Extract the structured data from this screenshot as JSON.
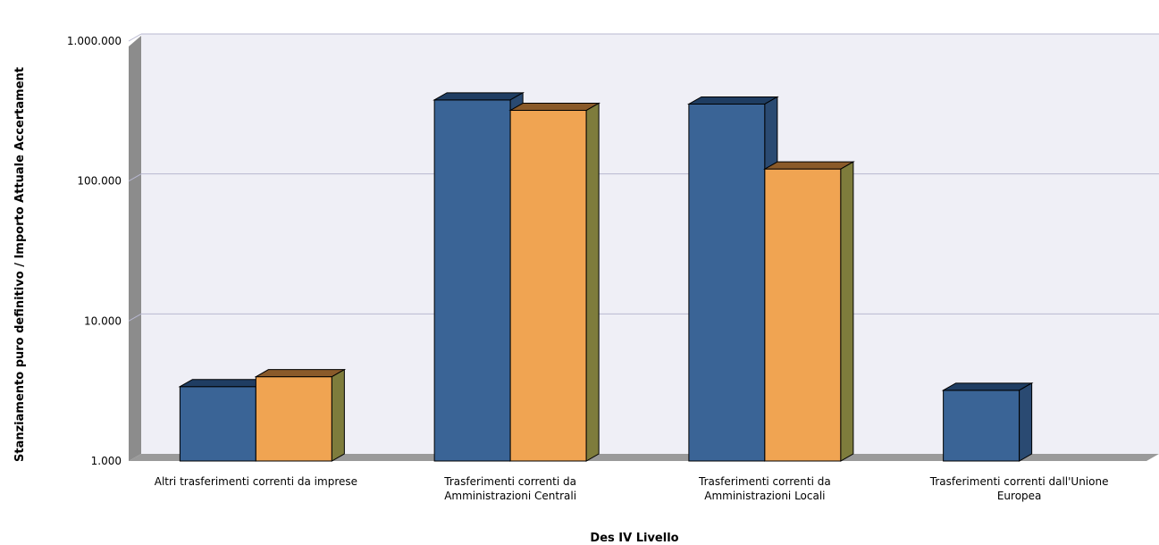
{
  "chart_data": {
    "type": "bar",
    "title": "",
    "xlabel": "Des IV Livello",
    "ylabel": "Stanziamento puro definitivo / Importo Attuale Accertament",
    "yscale": "log",
    "ylim": [
      1000,
      1000000
    ],
    "yticks": [
      1000,
      10000,
      100000,
      1000000
    ],
    "ytick_labels": [
      "1.000",
      "10.000",
      "100.000",
      "1.000.000"
    ],
    "grid": true,
    "categories": [
      [
        "Altri trasferimenti correnti da imprese"
      ],
      [
        "Trasferimenti correnti da",
        "Amministrazioni Centrali"
      ],
      [
        "Trasferimenti correnti da",
        "Amministrazioni Locali"
      ],
      [
        "Trasferimenti correnti dall'Unione",
        "Europea"
      ]
    ],
    "series": [
      {
        "color": "#3a6496",
        "top": "#1f3d62",
        "side": "#2a4a72",
        "values": [
          3400,
          380000,
          355000,
          3200
        ]
      },
      {
        "color": "#f0a452",
        "top": "#8a5a2a",
        "side": "#7e7c3c",
        "values": [
          4000,
          320000,
          122000,
          null
        ]
      }
    ],
    "colors": {
      "plot_bg": "#efeff6",
      "gridline": "#b8b8d0",
      "wall": "#8c8c8c",
      "floor": "#9a9a9a"
    }
  }
}
